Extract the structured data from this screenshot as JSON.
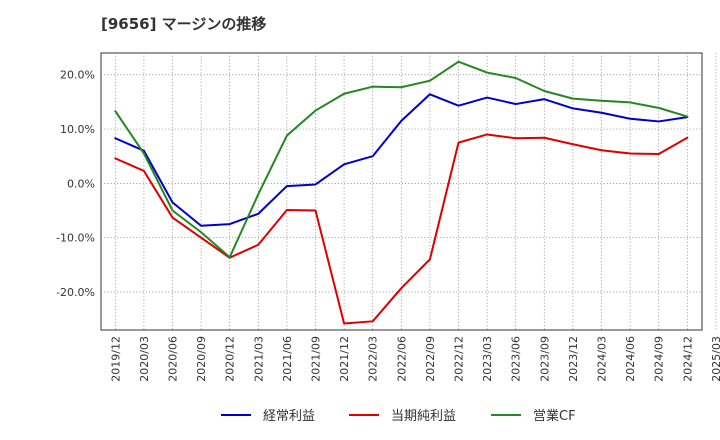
{
  "chart_data": {
    "type": "line",
    "title": "[9656]  マージンの推移",
    "x": [
      "2019/12",
      "2020/03",
      "2020/06",
      "2020/09",
      "2020/12",
      "2021/03",
      "2021/06",
      "2021/09",
      "2021/12",
      "2022/03",
      "2022/06",
      "2022/09",
      "2022/12",
      "2023/03",
      "2023/06",
      "2023/09",
      "2023/12",
      "2024/03",
      "2024/06",
      "2024/09",
      "2024/12",
      "2025/03"
    ],
    "ylim": [
      -27,
      24
    ],
    "yticks": [
      20,
      10,
      0,
      -10,
      -20
    ],
    "ytick_labels": [
      "20.0%",
      "10.0%",
      "0.0%",
      "-10.0%",
      "-20.0%"
    ],
    "grid": true,
    "legend_position": "bottom",
    "series": [
      {
        "name": "経常利益",
        "color": "#0000cc",
        "values": [
          8.3,
          6.0,
          -3.5,
          -7.8,
          -7.5,
          -5.6,
          -0.5,
          -0.2,
          3.5,
          5.0,
          11.5,
          16.4,
          14.3,
          15.8,
          14.6,
          15.5,
          13.8,
          13.0,
          11.9,
          11.4,
          12.2,
          null
        ]
      },
      {
        "name": "当期純利益",
        "color": "#dd0000",
        "values": [
          4.6,
          2.3,
          -6.3,
          -10.0,
          -13.7,
          -11.3,
          -4.9,
          -5.0,
          -25.8,
          -25.4,
          -19.3,
          -14.0,
          7.5,
          9.0,
          8.3,
          8.4,
          7.2,
          6.1,
          5.5,
          5.4,
          8.4,
          null
        ]
      },
      {
        "name": "営業CF",
        "color": "#228822",
        "values": [
          13.3,
          5.5,
          -5.0,
          -9.0,
          -13.6,
          -2.0,
          8.8,
          13.4,
          16.5,
          17.8,
          17.7,
          18.9,
          22.4,
          20.4,
          19.4,
          17.0,
          15.6,
          15.2,
          14.9,
          13.9,
          12.3,
          null
        ]
      }
    ]
  }
}
